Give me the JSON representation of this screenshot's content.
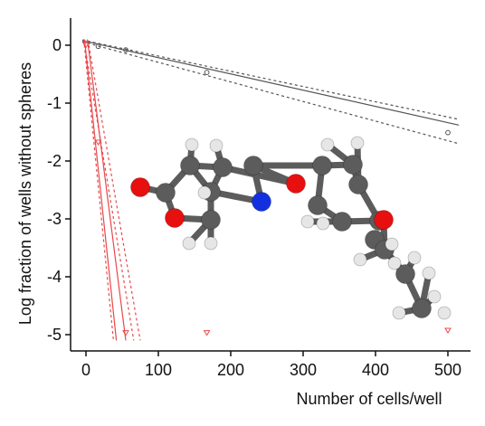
{
  "chart_data": {
    "type": "scatter",
    "title": "",
    "xlabel": "Number of cells/well",
    "ylabel": "Log fraction of wells without spheres",
    "xlim": [
      -20,
      530
    ],
    "ylim": [
      -5.2,
      0.2
    ],
    "xticks": [
      0,
      100,
      200,
      300,
      400,
      500
    ],
    "yticks": [
      0,
      -1,
      -2,
      -3,
      -4,
      -5
    ],
    "xtick_labels": [
      "0",
      "100",
      "200",
      "300",
      "400",
      "500"
    ],
    "ytick_labels": [
      "0",
      "-1",
      "-2",
      "-3",
      "-4",
      "-5"
    ],
    "grid": false,
    "legend": "none",
    "series": [
      {
        "color": "#555555",
        "marker": "circle",
        "points": [
          {
            "x": 17,
            "y": -0.02
          },
          {
            "x": 55,
            "y": -0.08
          },
          {
            "x": 167,
            "y": -0.47
          },
          {
            "x": 500,
            "y": -1.51
          }
        ],
        "fit": {
          "x0": -5,
          "y0": 0.08,
          "x1": 515,
          "y1": -1.38
        },
        "ci_upper": {
          "x0": -5,
          "y0": 0.09,
          "x1": 515,
          "y1": -1.28
        },
        "ci_lower": {
          "x0": -5,
          "y0": 0.06,
          "x1": 515,
          "y1": -1.7
        }
      },
      {
        "color": "#e8474b",
        "marker": "triangle-down",
        "points": [
          {
            "x": 0,
            "y": 0.0
          },
          {
            "x": 17,
            "y": -1.68
          },
          {
            "x": 55,
            "y": -4.97
          },
          {
            "x": 167,
            "y": -4.97
          },
          {
            "x": 500,
            "y": -4.93
          }
        ],
        "fit": {
          "x0": -2,
          "y0": 0.1,
          "x1": 42,
          "y1": -5.1
        },
        "fit_b": {
          "x0": 2,
          "y0": 0.1,
          "x1": 55,
          "y1": -5.1
        },
        "ci_upper": {
          "x0": -3,
          "y0": 0.1,
          "x1": 66,
          "y1": -5.1
        },
        "ci_lower": {
          "x0": -3,
          "y0": 0.1,
          "x1": 38,
          "y1": -5.1
        },
        "ci_extra": {
          "x0": 4,
          "y0": 0.0,
          "x1": 75,
          "y1": -5.1
        }
      }
    ]
  },
  "molecule": {
    "colors": {
      "carbon": "#5c5c5c",
      "hydrogen": "#e6e6e6",
      "oxygen": "#e80f0f",
      "nitrogen": "#1330e0"
    },
    "atoms": [
      {
        "el": "O"
      },
      {
        "el": "C"
      },
      {
        "el": "O"
      },
      {
        "el": "C"
      },
      {
        "el": "C"
      },
      {
        "el": "C"
      },
      {
        "el": "C"
      },
      {
        "el": "N"
      },
      {
        "el": "C"
      },
      {
        "el": "O"
      },
      {
        "el": "C"
      },
      {
        "el": "C"
      },
      {
        "el": "C"
      },
      {
        "el": "C"
      },
      {
        "el": "C"
      },
      {
        "el": "C"
      },
      {
        "el": "C"
      },
      {
        "el": "O"
      },
      {
        "el": "C"
      },
      {
        "el": "C"
      },
      {
        "el": "C"
      },
      {
        "el": "H"
      },
      {
        "el": "H"
      },
      {
        "el": "H"
      },
      {
        "el": "H"
      },
      {
        "el": "H"
      },
      {
        "el": "H"
      },
      {
        "el": "H"
      },
      {
        "el": "H"
      },
      {
        "el": "H"
      },
      {
        "el": "H"
      },
      {
        "el": "H"
      },
      {
        "el": "H"
      },
      {
        "el": "H"
      },
      {
        "el": "H"
      },
      {
        "el": "H"
      },
      {
        "el": "H"
      },
      {
        "el": "H"
      }
    ]
  }
}
